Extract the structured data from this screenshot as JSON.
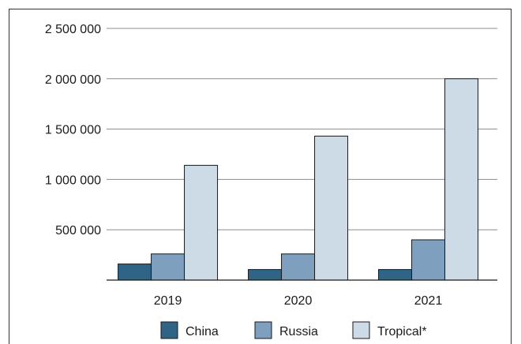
{
  "chart_data": {
    "type": "bar",
    "categories": [
      "2019",
      "2020",
      "2021"
    ],
    "series": [
      {
        "name": "China",
        "color": "#2f6487",
        "values": [
          160000,
          105000,
          105000
        ]
      },
      {
        "name": "Russia",
        "color": "#7e9fbd",
        "values": [
          260000,
          260000,
          400000
        ]
      },
      {
        "name": "Tropical*",
        "color": "#cddbe6",
        "values": [
          1140000,
          1430000,
          2000000
        ]
      }
    ],
    "yticks": [
      {
        "value": 500000,
        "label": "500 000"
      },
      {
        "value": 1000000,
        "label": "1 000 000"
      },
      {
        "value": 1500000,
        "label": "1 500 000"
      },
      {
        "value": 2000000,
        "label": "2 000 000"
      },
      {
        "value": 2500000,
        "label": "2 500 000"
      }
    ],
    "ylim": [
      0,
      2500000
    ],
    "grid": true,
    "legend_position": "bottom"
  }
}
